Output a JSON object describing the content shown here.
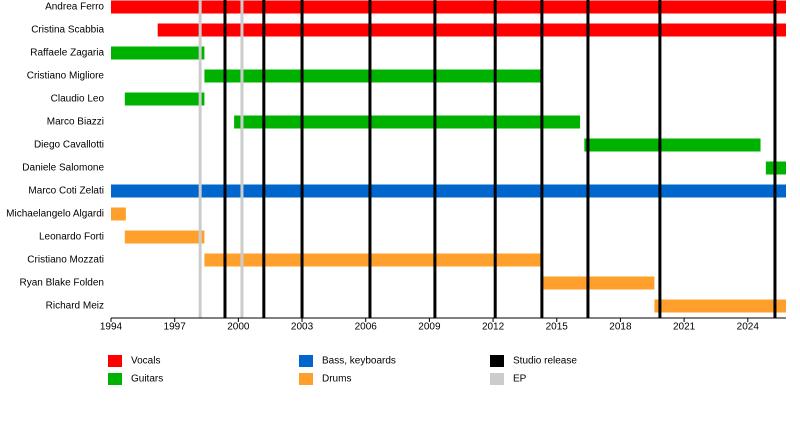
{
  "chart_data": {
    "type": "gantt",
    "xlim": [
      1994,
      2025.8
    ],
    "xticks": [
      1994,
      1997,
      2000,
      2003,
      2006,
      2009,
      2012,
      2015,
      2018,
      2021,
      2024
    ],
    "series": [
      {
        "name": "Vocals",
        "color": "#ff0000",
        "bars": [
          {
            "label": "Andrea Ferro",
            "start": 1994,
            "end": 2025.8
          },
          {
            "label": "Cristina Scabbia",
            "start": 1996.2,
            "end": 2025.8
          }
        ]
      },
      {
        "name": "Guitars",
        "color": "#00b200",
        "bars": [
          {
            "label": "Raffaele Zagaria",
            "start": 1994,
            "end": 1998.4
          },
          {
            "label": "Cristiano Migliore",
            "start": 1998.4,
            "end": 2014.35
          },
          {
            "label": "Claudio Leo",
            "start": 1994.65,
            "end": 1998.4
          },
          {
            "label": "Marco Biazzi",
            "start": 1999.8,
            "end": 2016.1
          },
          {
            "label": "Diego Cavallotti",
            "start": 2016.3,
            "end": 2024.6
          },
          {
            "label": "Daniele Salomone",
            "start": 2024.85,
            "end": 2025.8
          }
        ]
      },
      {
        "name": "Bass, keyboards",
        "color": "#0066cc",
        "bars": [
          {
            "label": "Marco Coti Zelati",
            "start": 1994,
            "end": 2025.8
          }
        ]
      },
      {
        "name": "Drums",
        "color": "#ffa02c",
        "bars": [
          {
            "label": "Michaelangelo Algardi",
            "start": 1994,
            "end": 1994.7
          },
          {
            "label": "Leonardo Forti",
            "start": 1994.65,
            "end": 1998.4
          },
          {
            "label": "Cristiano Mozzati",
            "start": 1998.4,
            "end": 2014.35
          },
          {
            "label": "Ryan Blake Folden",
            "start": 2014.35,
            "end": 2019.6
          },
          {
            "label": "Richard Meiz",
            "start": 2019.6,
            "end": 2025.8
          }
        ]
      }
    ],
    "markers": [
      {
        "name": "Studio release",
        "color": "#000000",
        "x": [
          1999.37,
          2001.2,
          2003.0,
          2006.2,
          2009.26,
          2012.1,
          2014.3,
          2016.47,
          2019.86,
          2025.28
        ]
      },
      {
        "name": "EP",
        "color": "#cccccc",
        "x": [
          1998.2,
          2000.17
        ]
      }
    ]
  }
}
